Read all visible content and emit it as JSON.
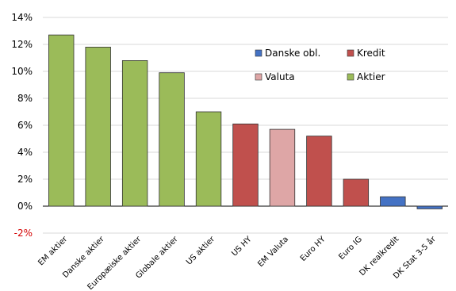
{
  "chart_data": {
    "type": "bar",
    "categories": [
      "EM aktier",
      "Danske aktier",
      "Europæiske aktier",
      "Globale aktier",
      "US aktier",
      "US HY",
      "EM Valuta",
      "Euro HY",
      "Euro IG",
      "DK realkredit",
      "DK Stat 3-5 år"
    ],
    "values": [
      12.7,
      11.8,
      10.8,
      9.9,
      7.0,
      6.1,
      5.7,
      5.2,
      2.0,
      0.7,
      -0.2
    ],
    "value_groups": [
      "Aktier",
      "Aktier",
      "Aktier",
      "Aktier",
      "Aktier",
      "Kredit",
      "Valuta",
      "Kredit",
      "Kredit",
      "Danske obl.",
      "Danske obl."
    ],
    "legend": [
      {
        "name": "Danske obl.",
        "color": "#4472c4"
      },
      {
        "name": "Kredit",
        "color": "#c0504d"
      },
      {
        "name": "Valuta",
        "color": "#dea6a6"
      },
      {
        "name": "Aktier",
        "color": "#9bbb59"
      }
    ],
    "yticks": [
      "14%",
      "12%",
      "10%",
      "8%",
      "6%",
      "4%",
      "2%",
      "0%",
      "-2%"
    ],
    "ytick_values": [
      14,
      12,
      10,
      8,
      6,
      4,
      2,
      0,
      -2
    ],
    "ylim": [
      -2,
      14
    ],
    "grid": true,
    "legend_position": "top-right",
    "negative_tick_color": "#d40000",
    "title": "",
    "xlabel": "",
    "ylabel": ""
  }
}
